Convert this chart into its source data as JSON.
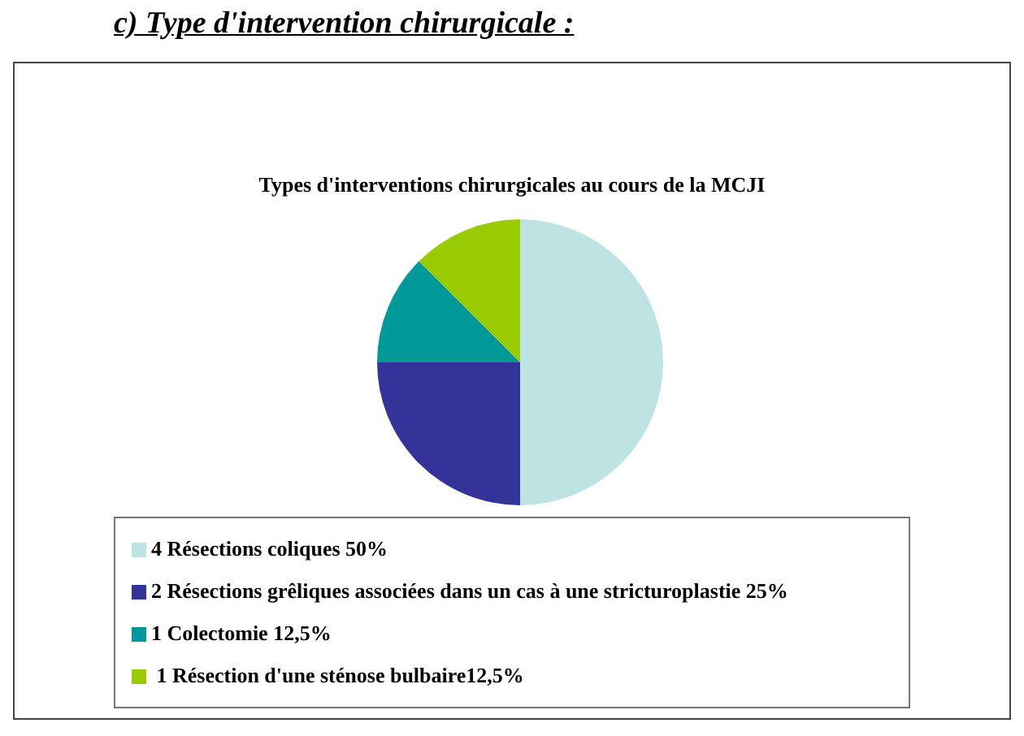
{
  "chart_data": {
    "type": "pie",
    "title": "Types d'interventions chirurgicales au cours de la MCJI",
    "annotations": [
      "c) Type d'intervention chirurgicale :"
    ],
    "categories": [
      "4 Résections coliques 50%",
      "2 Résections grêliques associées dans un cas à une stricturoplastie 25%",
      "1 Colectomie 12,5%",
      " 1 Résection d'une sténose bulbaire12,5%"
    ],
    "values": [
      50,
      25,
      12.5,
      12.5
    ],
    "colors": [
      "#bde3e3",
      "#333399",
      "#009999",
      "#99cc00"
    ],
    "legend": "bottom"
  }
}
